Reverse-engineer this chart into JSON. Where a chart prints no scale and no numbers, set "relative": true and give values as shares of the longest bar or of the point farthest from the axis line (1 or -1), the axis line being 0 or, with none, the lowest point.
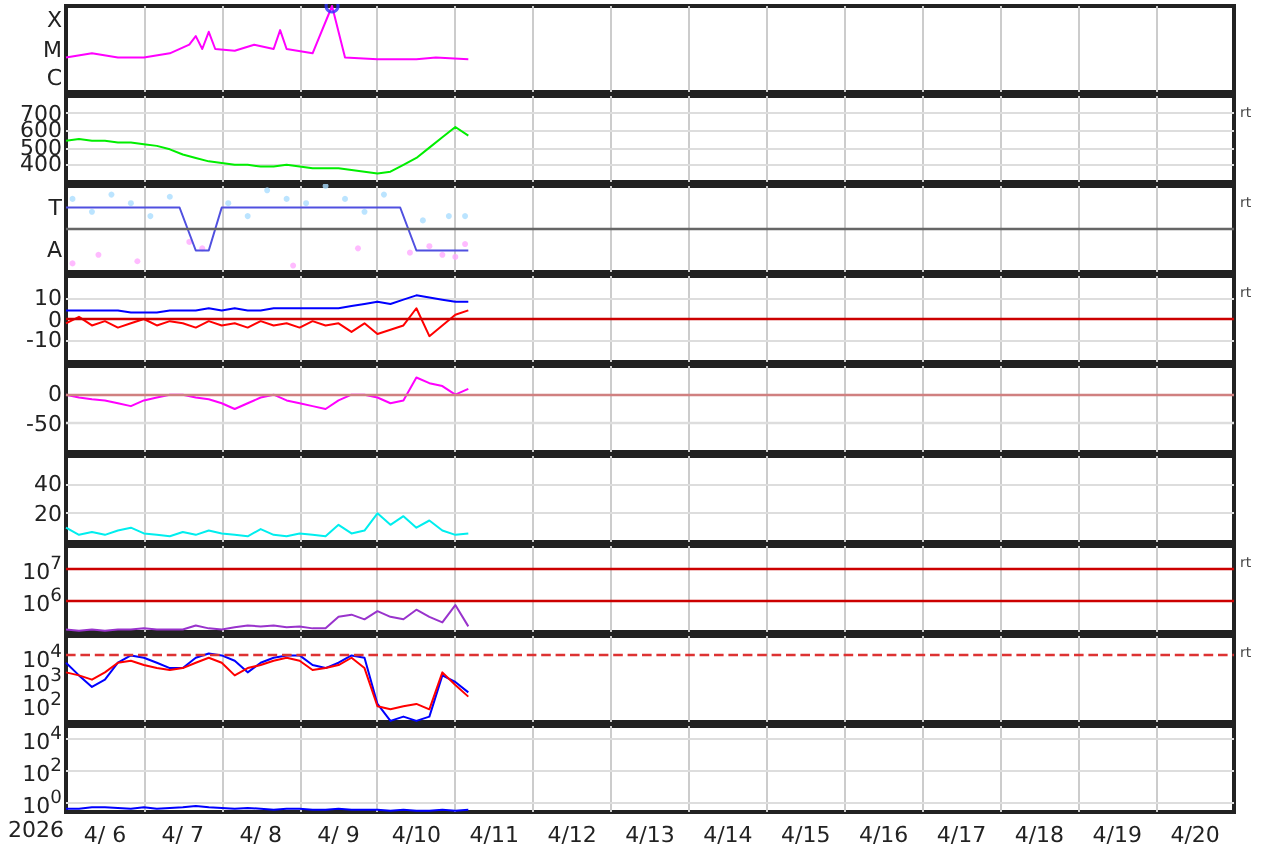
{
  "chart_data": [
    {
      "type": "line",
      "relative": true,
      "xlim": [
        "2026-04-06T00:00",
        "2026-04-21T00:00"
      ],
      "xticks": [
        {
          "value": "2026-04-07",
          "label": null
        },
        {
          "value": "2026-04-08",
          "label": null
        },
        {
          "value": "2026-04-09",
          "label": null
        },
        {
          "value": "2026-04-10",
          "label": null
        },
        {
          "value": "2026-04-11",
          "label": null
        },
        {
          "value": "2026-04-12",
          "label": null
        },
        {
          "value": "2026-04-13",
          "label": null
        },
        {
          "value": "2026-04-14",
          "label": null
        },
        {
          "value": "2026-04-15",
          "label": null
        },
        {
          "value": "2026-04-16",
          "label": null
        },
        {
          "value": "2026-04-17",
          "label": null
        },
        {
          "value": "2026-04-18",
          "label": null
        },
        {
          "value": "2026-04-19",
          "label": null
        },
        {
          "value": "2026-04-20",
          "label": null
        }
      ],
      "grid": "x",
      "tick_labels": "y",
      "annotations": [
        "X",
        "M",
        "C"
      ],
      "x": [
        "2026-04-06T00:00",
        "2026-04-06T08:00",
        "2026-04-06T16:00",
        "2026-04-07T00:00",
        "2026-04-07T08:00",
        "2026-04-07T14:00",
        "2026-04-07T16:00",
        "2026-04-07T18:00",
        "2026-04-07T20:00",
        "2026-04-07T22:00",
        "2026-04-08T04:00",
        "2026-04-08T10:00",
        "2026-04-08T16:00",
        "2026-04-08T18:00",
        "2026-04-08T20:00",
        "2026-04-09T04:00",
        "2026-04-09T10:00",
        "2026-04-09T14:00",
        "2026-04-10T00:00",
        "2026-04-10T12:00",
        "2026-04-10T18:00",
        "2026-04-11T04:00"
      ],
      "series": [
        {
          "color": "#ff00ff",
          "values": [
            0.4,
            0.45,
            0.4,
            0.4,
            0.45,
            0.55,
            0.65,
            0.5,
            0.7,
            0.5,
            0.48,
            0.55,
            0.5,
            0.72,
            0.5,
            0.45,
            1,
            0.4,
            0.38,
            0.38,
            0.4,
            0.38
          ]
        },
        {
          "type": "scatter",
          "color": "#3030ff",
          "x": [
            "2026-04-09T10:00"
          ],
          "values": [
            1
          ]
        }
      ]
    },
    {
      "type": "line",
      "ylim": [
        300,
        800
      ],
      "yticks": [
        400,
        500,
        600,
        700
      ],
      "xlim": [
        "2026-04-06T00:00",
        "2026-04-21T00:00"
      ],
      "xticks": [
        {
          "value": "2026-04-07",
          "label": null
        },
        {
          "value": "2026-04-08",
          "label": null
        },
        {
          "value": "2026-04-09",
          "label": null
        },
        {
          "value": "2026-04-10",
          "label": null
        },
        {
          "value": "2026-04-11",
          "label": null
        },
        {
          "value": "2026-04-12",
          "label": null
        },
        {
          "value": "2026-04-13",
          "label": null
        },
        {
          "value": "2026-04-14",
          "label": null
        },
        {
          "value": "2026-04-15",
          "label": null
        },
        {
          "value": "2026-04-16",
          "label": null
        },
        {
          "value": "2026-04-17",
          "label": null
        },
        {
          "value": "2026-04-18",
          "label": null
        },
        {
          "value": "2026-04-19",
          "label": null
        },
        {
          "value": "2026-04-20",
          "label": null
        }
      ],
      "grid": true,
      "tick_labels": "y",
      "annotations": [
        "rt",
        "rt"
      ],
      "x": [
        "2026-04-06T00:00",
        "2026-04-06T04:00",
        "2026-04-06T08:00",
        "2026-04-06T12:00",
        "2026-04-06T16:00",
        "2026-04-06T20:00",
        "2026-04-07T00:00",
        "2026-04-07T04:00",
        "2026-04-07T08:00",
        "2026-04-07T12:00",
        "2026-04-07T16:00",
        "2026-04-07T20:00",
        "2026-04-08T00:00",
        "2026-04-08T04:00",
        "2026-04-08T08:00",
        "2026-04-08T12:00",
        "2026-04-08T16:00",
        "2026-04-08T20:00",
        "2026-04-09T00:00",
        "2026-04-09T04:00",
        "2026-04-09T08:00",
        "2026-04-09T12:00",
        "2026-04-09T16:00",
        "2026-04-09T20:00",
        "2026-04-10T00:00",
        "2026-04-10T04:00",
        "2026-04-10T08:00",
        "2026-04-10T12:00",
        "2026-04-10T16:00",
        "2026-04-10T20:00",
        "2026-04-11T00:00",
        "2026-04-11T04:00"
      ],
      "series": [
        {
          "color": "#00ee00",
          "values": [
            540,
            550,
            540,
            540,
            530,
            530,
            520,
            510,
            490,
            460,
            440,
            420,
            410,
            400,
            400,
            390,
            390,
            400,
            390,
            380,
            380,
            380,
            370,
            360,
            350,
            360,
            400,
            440,
            500,
            560,
            620,
            570
          ]
        }
      ]
    },
    {
      "type": "line",
      "relative": true,
      "xlim": [
        "2026-04-06T00:00",
        "2026-04-21T00:00"
      ],
      "xticks": [
        {
          "value": "2026-04-07",
          "label": null
        },
        {
          "value": "2026-04-08",
          "label": null
        },
        {
          "value": "2026-04-09",
          "label": null
        },
        {
          "value": "2026-04-10",
          "label": null
        },
        {
          "value": "2026-04-11",
          "label": null
        },
        {
          "value": "2026-04-12",
          "label": null
        },
        {
          "value": "2026-04-13",
          "label": null
        },
        {
          "value": "2026-04-14",
          "label": null
        },
        {
          "value": "2026-04-15",
          "label": null
        },
        {
          "value": "2026-04-16",
          "label": null
        },
        {
          "value": "2026-04-17",
          "label": null
        },
        {
          "value": "2026-04-18",
          "label": null
        },
        {
          "value": "2026-04-19",
          "label": null
        },
        {
          "value": "2026-04-20",
          "label": null
        }
      ],
      "grid": "x",
      "tick_labels": "y",
      "annotations": [
        "T",
        "A"
      ],
      "ref_lines": [
        {
          "axis": "y",
          "value": 0,
          "color": "#666666"
        }
      ],
      "series": [
        {
          "type": "scatter",
          "color": "#aaddff",
          "x": [
            "2026-04-06T02:00",
            "2026-04-06T08:00",
            "2026-04-06T14:00",
            "2026-04-06T20:00",
            "2026-04-07T02:00",
            "2026-04-07T08:00",
            "2026-04-08T02:00",
            "2026-04-08T08:00",
            "2026-04-08T14:00",
            "2026-04-08T20:00",
            "2026-04-09T02:00",
            "2026-04-09T08:00",
            "2026-04-09T14:00",
            "2026-04-09T20:00",
            "2026-04-10T02:00",
            "2026-04-10T14:00",
            "2026-04-10T22:00",
            "2026-04-11T03:00"
          ],
          "values": [
            0.7,
            0.4,
            0.8,
            0.6,
            0.3,
            0.75,
            0.6,
            0.3,
            0.9,
            0.7,
            0.6,
            1,
            0.7,
            0.4,
            0.8,
            0.2,
            0.3,
            0.3
          ]
        },
        {
          "type": "scatter",
          "color": "#ffaaff",
          "x": [
            "2026-04-06T02:00",
            "2026-04-06T10:00",
            "2026-04-06T22:00",
            "2026-04-07T14:00",
            "2026-04-07T18:00",
            "2026-04-08T22:00",
            "2026-04-09T18:00",
            "2026-04-10T10:00",
            "2026-04-10T16:00",
            "2026-04-10T20:00",
            "2026-04-11T00:00",
            "2026-04-11T03:00"
          ],
          "values": [
            -0.8,
            -0.6,
            -0.75,
            -0.3,
            -0.45,
            -0.85,
            -0.45,
            -0.55,
            -0.4,
            -0.6,
            -0.65,
            -0.35
          ]
        },
        {
          "color": "#5050e0",
          "x": [
            "2026-04-06T00:00",
            "2026-04-07T11:00",
            "2026-04-07T16:00",
            "2026-04-07T20:00",
            "2026-04-08T00:00",
            "2026-04-10T07:00",
            "2026-04-10T12:00",
            "2026-04-11T04:00"
          ],
          "values": [
            0.5,
            0.5,
            -0.5,
            -0.5,
            0.5,
            0.5,
            -0.5,
            -0.5
          ]
        }
      ]
    },
    {
      "type": "line",
      "ylim": [
        -20,
        20
      ],
      "yticks": [
        -10,
        0,
        10
      ],
      "xlim": [
        "2026-04-06T00:00",
        "2026-04-21T00:00"
      ],
      "xticks": [
        {
          "value": "2026-04-07",
          "label": null
        },
        {
          "value": "2026-04-08",
          "label": null
        },
        {
          "value": "2026-04-09",
          "label": null
        },
        {
          "value": "2026-04-10",
          "label": null
        },
        {
          "value": "2026-04-11",
          "label": null
        },
        {
          "value": "2026-04-12",
          "label": null
        },
        {
          "value": "2026-04-13",
          "label": null
        },
        {
          "value": "2026-04-14",
          "label": null
        },
        {
          "value": "2026-04-15",
          "label": null
        },
        {
          "value": "2026-04-16",
          "label": null
        },
        {
          "value": "2026-04-17",
          "label": null
        },
        {
          "value": "2026-04-18",
          "label": null
        },
        {
          "value": "2026-04-19",
          "label": null
        },
        {
          "value": "2026-04-20",
          "label": null
        }
      ],
      "grid": true,
      "tick_labels": "y",
      "annotations": [
        "rt"
      ],
      "ref_lines": [
        {
          "axis": "y",
          "value": 0,
          "color": "#cc0000"
        }
      ],
      "x": [
        "2026-04-06T00:00",
        "2026-04-06T04:00",
        "2026-04-06T08:00",
        "2026-04-06T12:00",
        "2026-04-06T16:00",
        "2026-04-06T20:00",
        "2026-04-07T00:00",
        "2026-04-07T04:00",
        "2026-04-07T08:00",
        "2026-04-07T12:00",
        "2026-04-07T16:00",
        "2026-04-07T20:00",
        "2026-04-08T00:00",
        "2026-04-08T04:00",
        "2026-04-08T08:00",
        "2026-04-08T12:00",
        "2026-04-08T16:00",
        "2026-04-08T20:00",
        "2026-04-09T00:00",
        "2026-04-09T04:00",
        "2026-04-09T08:00",
        "2026-04-09T12:00",
        "2026-04-09T16:00",
        "2026-04-09T20:00",
        "2026-04-10T00:00",
        "2026-04-10T04:00",
        "2026-04-10T08:00",
        "2026-04-10T12:00",
        "2026-04-10T16:00",
        "2026-04-10T20:00",
        "2026-04-11T00:00",
        "2026-04-11T04:00"
      ],
      "series": [
        {
          "color": "#0000ff",
          "values": [
            4,
            4,
            4,
            4,
            4,
            3,
            3,
            3,
            4,
            4,
            4,
            5,
            4,
            5,
            4,
            4,
            5,
            5,
            5,
            5,
            5,
            5,
            6,
            7,
            8,
            7,
            9,
            11,
            10,
            9,
            8,
            8
          ]
        },
        {
          "color": "#ff0000",
          "values": [
            -2,
            1,
            -3,
            -1,
            -4,
            -2,
            0,
            -3,
            -1,
            -2,
            -4,
            -1,
            -3,
            -2,
            -4,
            -1,
            -3,
            -2,
            -4,
            -1,
            -3,
            -2,
            -6,
            -2,
            -7,
            -5,
            -3,
            5,
            -8,
            -3,
            2,
            4
          ]
        }
      ]
    },
    {
      "type": "line",
      "ylim": [
        -100,
        50
      ],
      "yticks": [
        -50,
        0
      ],
      "xlim": [
        "2026-04-06T00:00",
        "2026-04-21T00:00"
      ],
      "xticks": [
        {
          "value": "2026-04-07",
          "label": null
        },
        {
          "value": "2026-04-08",
          "label": null
        },
        {
          "value": "2026-04-09",
          "label": null
        },
        {
          "value": "2026-04-10",
          "label": null
        },
        {
          "value": "2026-04-11",
          "label": null
        },
        {
          "value": "2026-04-12",
          "label": null
        },
        {
          "value": "2026-04-13",
          "label": null
        },
        {
          "value": "2026-04-14",
          "label": null
        },
        {
          "value": "2026-04-15",
          "label": null
        },
        {
          "value": "2026-04-16",
          "label": null
        },
        {
          "value": "2026-04-17",
          "label": null
        },
        {
          "value": "2026-04-18",
          "label": null
        },
        {
          "value": "2026-04-19",
          "label": null
        },
        {
          "value": "2026-04-20",
          "label": null
        }
      ],
      "grid": "x",
      "tick_labels": "y",
      "ref_lines": [
        {
          "axis": "y",
          "value": 0,
          "color": "#d08080"
        },
        {
          "axis": "y",
          "value": -50,
          "color": "#dddddd"
        }
      ],
      "x": [
        "2026-04-06T00:00",
        "2026-04-06T04:00",
        "2026-04-06T08:00",
        "2026-04-06T12:00",
        "2026-04-06T16:00",
        "2026-04-06T20:00",
        "2026-04-07T00:00",
        "2026-04-07T04:00",
        "2026-04-07T08:00",
        "2026-04-07T12:00",
        "2026-04-07T16:00",
        "2026-04-07T20:00",
        "2026-04-08T00:00",
        "2026-04-08T04:00",
        "2026-04-08T08:00",
        "2026-04-08T12:00",
        "2026-04-08T16:00",
        "2026-04-08T20:00",
        "2026-04-09T00:00",
        "2026-04-09T04:00",
        "2026-04-09T08:00",
        "2026-04-09T12:00",
        "2026-04-09T16:00",
        "2026-04-09T20:00",
        "2026-04-10T00:00",
        "2026-04-10T04:00",
        "2026-04-10T08:00",
        "2026-04-10T12:00",
        "2026-04-10T16:00",
        "2026-04-10T20:00",
        "2026-04-11T00:00",
        "2026-04-11T04:00"
      ],
      "series": [
        {
          "color": "#ff00ff",
          "values": [
            0,
            -5,
            -8,
            -10,
            -15,
            -20,
            -10,
            -5,
            0,
            0,
            -5,
            -8,
            -15,
            -25,
            -15,
            -5,
            0,
            -10,
            -15,
            -20,
            -25,
            -10,
            0,
            0,
            -5,
            -15,
            -10,
            30,
            20,
            15,
            0,
            10
          ]
        }
      ]
    },
    {
      "type": "line",
      "ylim": [
        0,
        60
      ],
      "yticks": [
        20,
        40
      ],
      "xlim": [
        "2026-04-06T00:00",
        "2026-04-21T00:00"
      ],
      "xticks": [
        {
          "value": "2026-04-07",
          "label": null
        },
        {
          "value": "2026-04-08",
          "label": null
        },
        {
          "value": "2026-04-09",
          "label": null
        },
        {
          "value": "2026-04-10",
          "label": null
        },
        {
          "value": "2026-04-11",
          "label": null
        },
        {
          "value": "2026-04-12",
          "label": null
        },
        {
          "value": "2026-04-13",
          "label": null
        },
        {
          "value": "2026-04-14",
          "label": null
        },
        {
          "value": "2026-04-15",
          "label": null
        },
        {
          "value": "2026-04-16",
          "label": null
        },
        {
          "value": "2026-04-17",
          "label": null
        },
        {
          "value": "2026-04-18",
          "label": null
        },
        {
          "value": "2026-04-19",
          "label": null
        },
        {
          "value": "2026-04-20",
          "label": null
        }
      ],
      "grid": true,
      "tick_labels": "y",
      "x": [
        "2026-04-06T00:00",
        "2026-04-06T04:00",
        "2026-04-06T08:00",
        "2026-04-06T12:00",
        "2026-04-06T16:00",
        "2026-04-06T20:00",
        "2026-04-07T00:00",
        "2026-04-07T04:00",
        "2026-04-07T08:00",
        "2026-04-07T12:00",
        "2026-04-07T16:00",
        "2026-04-07T20:00",
        "2026-04-08T00:00",
        "2026-04-08T04:00",
        "2026-04-08T08:00",
        "2026-04-08T12:00",
        "2026-04-08T16:00",
        "2026-04-08T20:00",
        "2026-04-09T00:00",
        "2026-04-09T04:00",
        "2026-04-09T08:00",
        "2026-04-09T12:00",
        "2026-04-09T16:00",
        "2026-04-09T20:00",
        "2026-04-10T00:00",
        "2026-04-10T04:00",
        "2026-04-10T08:00",
        "2026-04-10T12:00",
        "2026-04-10T16:00",
        "2026-04-10T20:00",
        "2026-04-11T00:00",
        "2026-04-11T04:00"
      ],
      "series": [
        {
          "color": "#00eeee",
          "values": [
            10,
            5,
            7,
            5,
            8,
            10,
            6,
            5,
            4,
            7,
            5,
            8,
            6,
            5,
            4,
            9,
            5,
            4,
            6,
            5,
            4,
            12,
            6,
            8,
            20,
            12,
            18,
            10,
            15,
            8,
            5,
            6
          ]
        }
      ]
    },
    {
      "type": "line",
      "log": "y",
      "ylim": [
        100000,
        50000000
      ],
      "yticks": [
        {
          "value": 1000000,
          "label": "10$^{6}$"
        },
        {
          "value": 10000000,
          "label": "10$^{7}$"
        }
      ],
      "xlim": [
        "2026-04-06T00:00",
        "2026-04-21T00:00"
      ],
      "xticks": [
        {
          "value": "2026-04-07",
          "label": null
        },
        {
          "value": "2026-04-08",
          "label": null
        },
        {
          "value": "2026-04-09",
          "label": null
        },
        {
          "value": "2026-04-10",
          "label": null
        },
        {
          "value": "2026-04-11",
          "label": null
        },
        {
          "value": "2026-04-12",
          "label": null
        },
        {
          "value": "2026-04-13",
          "label": null
        },
        {
          "value": "2026-04-14",
          "label": null
        },
        {
          "value": "2026-04-15",
          "label": null
        },
        {
          "value": "2026-04-16",
          "label": null
        },
        {
          "value": "2026-04-17",
          "label": null
        },
        {
          "value": "2026-04-18",
          "label": null
        },
        {
          "value": "2026-04-19",
          "label": null
        },
        {
          "value": "2026-04-20",
          "label": null
        }
      ],
      "grid": "x",
      "tick_labels": "y",
      "annotations": [
        "rt"
      ],
      "ref_lines": [
        {
          "axis": "y",
          "value": 1000000,
          "color": "#cc0000"
        },
        {
          "axis": "y",
          "value": 10000000,
          "color": "#cc0000"
        }
      ],
      "x": [
        "2026-04-06T00:00",
        "2026-04-06T04:00",
        "2026-04-06T08:00",
        "2026-04-06T12:00",
        "2026-04-06T16:00",
        "2026-04-06T20:00",
        "2026-04-07T00:00",
        "2026-04-07T04:00",
        "2026-04-07T08:00",
        "2026-04-07T12:00",
        "2026-04-07T16:00",
        "2026-04-07T20:00",
        "2026-04-08T00:00",
        "2026-04-08T04:00",
        "2026-04-08T08:00",
        "2026-04-08T12:00",
        "2026-04-08T16:00",
        "2026-04-08T20:00",
        "2026-04-09T00:00",
        "2026-04-09T04:00",
        "2026-04-09T08:00",
        "2026-04-09T12:00",
        "2026-04-09T16:00",
        "2026-04-09T20:00",
        "2026-04-10T00:00",
        "2026-04-10T04:00",
        "2026-04-10T08:00",
        "2026-04-10T12:00",
        "2026-04-10T16:00",
        "2026-04-10T20:00",
        "2026-04-11T00:00",
        "2026-04-11T04:00"
      ],
      "series": [
        {
          "color": "#9933cc",
          "values": [
            120000,
            110000,
            120000,
            110000,
            120000,
            120000,
            130000,
            120000,
            120000,
            120000,
            160000,
            130000,
            120000,
            140000,
            160000,
            150000,
            160000,
            140000,
            150000,
            130000,
            130000,
            300000,
            350000,
            250000,
            450000,
            300000,
            250000,
            500000,
            300000,
            200000,
            700000,
            150000
          ]
        }
      ]
    },
    {
      "type": "line",
      "log": "y",
      "ylim": [
        18,
        63000
      ],
      "yticks": [
        {
          "value": 100,
          "label": "10$^{2}$"
        },
        {
          "value": 1000,
          "label": "10$^{3}$"
        },
        {
          "value": 10000,
          "label": "10$^{4}$"
        }
      ],
      "xlim": [
        "2026-04-06T00:00",
        "2026-04-21T00:00"
      ],
      "xticks": [
        {
          "value": "2026-04-07",
          "label": null
        },
        {
          "value": "2026-04-08",
          "label": null
        },
        {
          "value": "2026-04-09",
          "label": null
        },
        {
          "value": "2026-04-10",
          "label": null
        },
        {
          "value": "2026-04-11",
          "label": null
        },
        {
          "value": "2026-04-12",
          "label": null
        },
        {
          "value": "2026-04-13",
          "label": null
        },
        {
          "value": "2026-04-14",
          "label": null
        },
        {
          "value": "2026-04-15",
          "label": null
        },
        {
          "value": "2026-04-16",
          "label": null
        },
        {
          "value": "2026-04-17",
          "label": null
        },
        {
          "value": "2026-04-18",
          "label": null
        },
        {
          "value": "2026-04-19",
          "label": null
        },
        {
          "value": "2026-04-20",
          "label": null
        }
      ],
      "grid": "x",
      "tick_labels": "y",
      "annotations": [
        "rt"
      ],
      "ref_lines": [
        {
          "axis": "y",
          "value": 10000,
          "color": "#dd3333",
          "line_style": "dashed"
        }
      ],
      "x": [
        "2026-04-06T00:00",
        "2026-04-06T04:00",
        "2026-04-06T08:00",
        "2026-04-06T12:00",
        "2026-04-06T16:00",
        "2026-04-06T20:00",
        "2026-04-07T00:00",
        "2026-04-07T04:00",
        "2026-04-07T08:00",
        "2026-04-07T12:00",
        "2026-04-07T16:00",
        "2026-04-07T20:00",
        "2026-04-08T00:00",
        "2026-04-08T04:00",
        "2026-04-08T08:00",
        "2026-04-08T12:00",
        "2026-04-08T16:00",
        "2026-04-08T20:00",
        "2026-04-09T00:00",
        "2026-04-09T04:00",
        "2026-04-09T08:00",
        "2026-04-09T12:00",
        "2026-04-09T16:00",
        "2026-04-09T20:00",
        "2026-04-10T00:00",
        "2026-04-10T04:00",
        "2026-04-10T08:00",
        "2026-04-10T12:00",
        "2026-04-10T16:00",
        "2026-04-10T20:00",
        "2026-04-11T00:00",
        "2026-04-11T04:00"
      ],
      "series": [
        {
          "color": "#0000ff",
          "values": [
            5000,
            1500,
            500,
            1000,
            5000,
            10000,
            8000,
            5000,
            3000,
            3000,
            8000,
            12000,
            10000,
            6000,
            2000,
            5000,
            8000,
            10000,
            10000,
            4000,
            3000,
            5000,
            10000,
            8000,
            100,
            20,
            30,
            20,
            30,
            1500,
            800,
            300
          ]
        },
        {
          "color": "#ff0000",
          "values": [
            2000,
            1500,
            1000,
            2000,
            5000,
            6000,
            4000,
            3000,
            2500,
            3000,
            5000,
            8000,
            5000,
            1500,
            3000,
            4000,
            6000,
            8000,
            6000,
            2500,
            3000,
            4000,
            8000,
            3000,
            80,
            60,
            80,
            100,
            60,
            2000,
            600,
            200
          ]
        }
      ]
    },
    {
      "type": "line",
      "log": "y",
      "ylim": [
        0.25,
        56000
      ],
      "yticks": [
        {
          "value": 1,
          "label": "10$^{0}$"
        },
        {
          "value": 100,
          "label": "10$^{2}$"
        },
        {
          "value": 10000,
          "label": "10$^{4}$"
        }
      ],
      "xlim": [
        "2026-04-06T00:00",
        "2026-04-21T00:00"
      ],
      "xticks": [
        {
          "value": "2026-04-06T12:00",
          "label": "4/ 6"
        },
        {
          "value": "2026-04-07",
          "label": null
        },
        {
          "value": "2026-04-07T12:00",
          "label": "4/ 7"
        },
        {
          "value": "2026-04-08",
          "label": null
        },
        {
          "value": "2026-04-08T12:00",
          "label": "4/ 8"
        },
        {
          "value": "2026-04-09",
          "label": null
        },
        {
          "value": "2026-04-09T12:00",
          "label": "4/ 9"
        },
        {
          "value": "2026-04-10",
          "label": null
        },
        {
          "value": "2026-04-10T12:00",
          "label": "4/10"
        },
        {
          "value": "2026-04-11",
          "label": null
        },
        {
          "value": "2026-04-11T12:00",
          "label": "4/11"
        },
        {
          "value": "2026-04-12",
          "label": null
        },
        {
          "value": "2026-04-12T12:00",
          "label": "4/12"
        },
        {
          "value": "2026-04-13",
          "label": null
        },
        {
          "value": "2026-04-13T12:00",
          "label": "4/13"
        },
        {
          "value": "2026-04-14",
          "label": null
        },
        {
          "value": "2026-04-14T12:00",
          "label": "4/14"
        },
        {
          "value": "2026-04-15",
          "label": null
        },
        {
          "value": "2026-04-15T12:00",
          "label": "4/15"
        },
        {
          "value": "2026-04-16",
          "label": null
        },
        {
          "value": "2026-04-16T12:00",
          "label": "4/16"
        },
        {
          "value": "2026-04-17",
          "label": null
        },
        {
          "value": "2026-04-17T12:00",
          "label": "4/17"
        },
        {
          "value": "2026-04-18",
          "label": null
        },
        {
          "value": "2026-04-18T12:00",
          "label": "4/18"
        },
        {
          "value": "2026-04-19",
          "label": null
        },
        {
          "value": "2026-04-19T12:00",
          "label": "4/19"
        },
        {
          "value": "2026-04-20",
          "label": null
        },
        {
          "value": "2026-04-20T12:00",
          "label": "4/20"
        }
      ],
      "grid": true,
      "xlabel": "2026",
      "x": [
        "2026-04-06T00:00",
        "2026-04-06T04:00",
        "2026-04-06T08:00",
        "2026-04-06T12:00",
        "2026-04-06T16:00",
        "2026-04-06T20:00",
        "2026-04-07T00:00",
        "2026-04-07T04:00",
        "2026-04-07T08:00",
        "2026-04-07T12:00",
        "2026-04-07T16:00",
        "2026-04-07T20:00",
        "2026-04-08T00:00",
        "2026-04-08T04:00",
        "2026-04-08T08:00",
        "2026-04-08T12:00",
        "2026-04-08T16:00",
        "2026-04-08T20:00",
        "2026-04-09T00:00",
        "2026-04-09T04:00",
        "2026-04-09T08:00",
        "2026-04-09T12:00",
        "2026-04-09T16:00",
        "2026-04-09T20:00",
        "2026-04-10T00:00",
        "2026-04-10T04:00",
        "2026-04-10T08:00",
        "2026-04-10T12:00",
        "2026-04-10T16:00",
        "2026-04-10T20:00",
        "2026-04-11T00:00",
        "2026-04-11T04:00"
      ],
      "series": [
        {
          "color": "#0000ff",
          "values": [
            0.4,
            0.4,
            0.5,
            0.5,
            0.45,
            0.4,
            0.5,
            0.4,
            0.45,
            0.5,
            0.6,
            0.5,
            0.45,
            0.4,
            0.45,
            0.4,
            0.35,
            0.4,
            0.4,
            0.35,
            0.35,
            0.4,
            0.35,
            0.35,
            0.35,
            0.3,
            0.35,
            0.3,
            0.3,
            0.35,
            0.3,
            0.35
          ]
        }
      ]
    }
  ]
}
